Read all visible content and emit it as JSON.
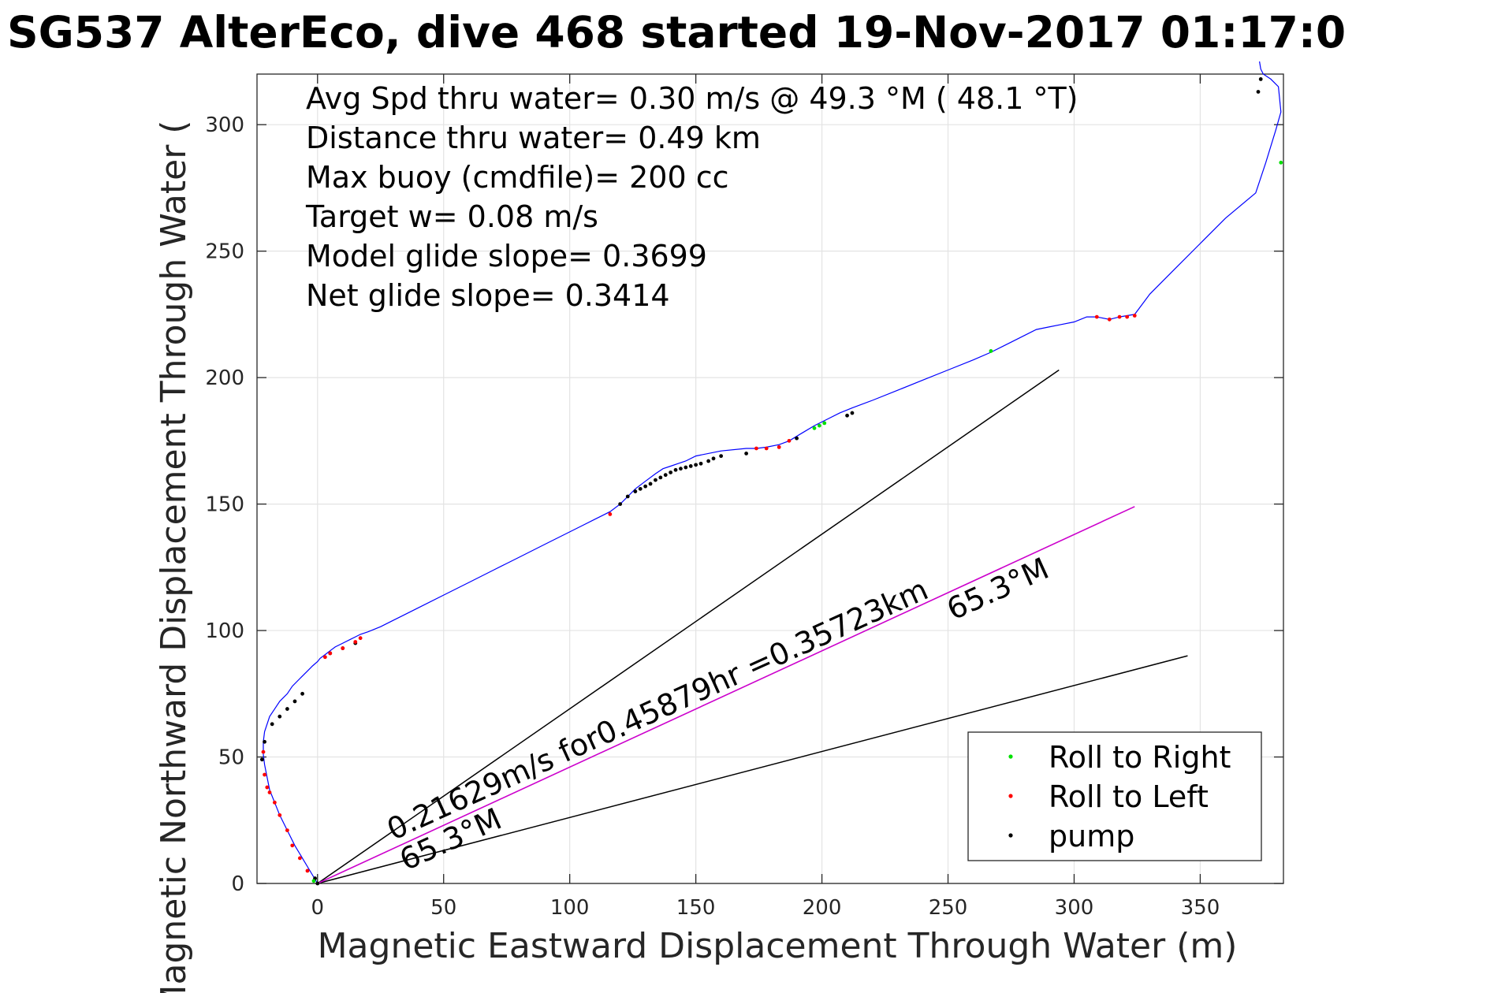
{
  "chart_data": {
    "type": "line",
    "title": "SG537 AlterEco, dive 468 started 19-Nov-2017 01:17:0",
    "xlabel": "Magnetic Eastward Displacement Through Water (m)",
    "ylabel": "Magnetic Northward Displacement Through Water (",
    "xlim": [
      -24,
      383
    ],
    "ylim": [
      0,
      320
    ],
    "xticks": [
      0,
      50,
      100,
      150,
      200,
      250,
      300,
      350
    ],
    "yticks": [
      0,
      50,
      100,
      150,
      200,
      250,
      300
    ],
    "xtick_labels": [
      "0",
      "50",
      "100",
      "150",
      "200",
      "250",
      "300",
      "350"
    ],
    "ytick_labels": [
      "0",
      "50",
      "100",
      "150",
      "200",
      "250",
      "300"
    ],
    "grid": true,
    "info_lines": [
      "Avg Spd thru water=  0.30 m/s @  49.3 °M ( 48.1 °T)",
      "Distance thru water=  0.49 km",
      "Max buoy (cmdfile)= 200 cc",
      "Target w= 0.08 m/s",
      "Model glide slope= 0.3699",
      "Net glide slope= 0.3414"
    ],
    "legend": {
      "placement": "bottom-right",
      "entries": [
        {
          "label": "Roll to Right",
          "color": "#00e000"
        },
        {
          "label": "Roll to Left",
          "color": "#ff0000"
        },
        {
          "label": "pump",
          "color": "#000000"
        }
      ]
    },
    "colors": {
      "track": "#0000ff",
      "current": "#cc00cc",
      "reference": "#000000"
    },
    "track": {
      "x": [
        0,
        -3,
        -6,
        -9,
        -12,
        -15,
        -17,
        -19,
        -20,
        -21,
        -21.5,
        -21.5,
        -21,
        -20,
        -19,
        -17,
        -15,
        -12,
        -10,
        -7,
        -4,
        -2,
        0,
        1,
        3,
        5,
        7,
        10,
        13,
        15,
        17,
        20,
        25,
        30,
        40,
        50,
        60,
        70,
        75,
        80,
        90,
        100,
        105,
        110,
        116,
        120,
        123,
        126,
        130,
        134,
        137,
        140,
        143,
        146,
        150,
        160,
        170,
        174,
        178,
        183,
        187,
        192,
        197,
        202,
        207,
        212,
        220,
        230,
        240,
        250,
        260,
        267,
        275,
        285,
        290,
        295,
        300,
        305,
        309,
        314,
        318,
        321,
        324,
        330,
        340,
        350,
        360,
        372,
        376,
        380,
        382,
        381,
        378,
        375,
        374,
        373.5
      ],
      "y": [
        0,
        5,
        10,
        15,
        21,
        27,
        32,
        37,
        42,
        47,
        51,
        56,
        60,
        63,
        66,
        69,
        72,
        75,
        78,
        81,
        84,
        86,
        87.7,
        89,
        90.5,
        92,
        93.5,
        95,
        96.5,
        97.5,
        98.5,
        99.5,
        101.5,
        104,
        109,
        114,
        119,
        124,
        126.5,
        129,
        134,
        139,
        141.5,
        144,
        147,
        150,
        153,
        156,
        159,
        162,
        164,
        165,
        166,
        167,
        169,
        171,
        172,
        172,
        172.5,
        173.5,
        175,
        178,
        181,
        183.5,
        186,
        188,
        191,
        195,
        199,
        203,
        207,
        210,
        214,
        219,
        220,
        221,
        222,
        224,
        224,
        223,
        224,
        224.5,
        225,
        233,
        243,
        253,
        263,
        273,
        285,
        298,
        305,
        315,
        318,
        320,
        322,
        325
      ]
    },
    "roll_right": {
      "x": [
        -1.5,
        197,
        199,
        201,
        267,
        382
      ],
      "y": [
        1,
        180,
        181,
        182,
        210.5,
        285
      ]
    },
    "roll_left": {
      "x": [
        -21.5,
        -21,
        -20,
        -19,
        -17,
        -15,
        -12,
        -10,
        -7,
        -4,
        3,
        5,
        10,
        15,
        17,
        116,
        174,
        178,
        183,
        187,
        309,
        314,
        318,
        321,
        324
      ],
      "y": [
        52,
        43,
        38,
        36,
        32,
        27,
        21,
        15,
        10,
        5,
        89.5,
        91,
        93,
        95.5,
        97,
        146,
        172,
        172,
        172.5,
        175,
        224,
        223,
        224,
        224,
        224.5
      ]
    },
    "pump": {
      "x": [
        0,
        -1,
        -22,
        -21,
        -18,
        -15,
        -12,
        -9,
        -6,
        5,
        10,
        15,
        120,
        123,
        126,
        128,
        130,
        132,
        134,
        136,
        138,
        140,
        142,
        144,
        146,
        148,
        150,
        152,
        155,
        157,
        160,
        170,
        190,
        210,
        212,
        373,
        374
      ],
      "y": [
        0,
        2,
        49,
        56,
        63,
        66,
        69,
        72,
        75,
        91,
        93,
        95,
        150,
        153,
        155,
        156,
        157,
        158,
        159.5,
        160.5,
        161.5,
        162.5,
        163.5,
        164,
        164.5,
        165,
        165.5,
        166,
        167,
        168,
        169,
        170,
        176,
        185,
        186,
        313,
        318
      ]
    },
    "reference_lines": [
      {
        "from": [
          0,
          0
        ],
        "to": [
          294,
          203
        ]
      },
      {
        "from": [
          0,
          0
        ],
        "to": [
          345,
          90
        ]
      }
    ],
    "current_line": {
      "from": [
        0,
        0
      ],
      "to": [
        324,
        149
      ]
    },
    "annotations": [
      {
        "text": "0.21629m/s for0.45879hr =0.35723km",
        "x": 30,
        "y": 17,
        "angle_deg": 24.4
      },
      {
        "text": "65.3°M",
        "x": 35,
        "y": 5,
        "angle_deg": 24.4
      },
      {
        "text": "65.3°M",
        "x": 252,
        "y": 104,
        "angle_deg": 24.4
      }
    ]
  }
}
